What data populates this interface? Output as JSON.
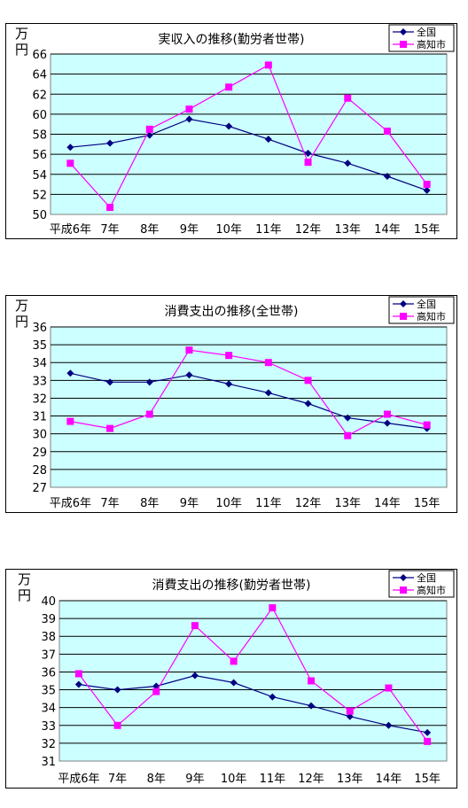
{
  "colors": {
    "plot_bg": "#CCFFFF",
    "national": "#000080",
    "kochi": "#FF00FF",
    "grid": "#000000"
  },
  "chart_data": [
    {
      "type": "line",
      "title": "実収入の推移(勤労者世帯)",
      "ylabel": "万円",
      "categories": [
        "平成6年",
        "7年",
        "8年",
        "9年",
        "10年",
        "11年",
        "12年",
        "13年",
        "14年",
        "15年"
      ],
      "ylim": [
        50,
        66
      ],
      "yticks": [
        "50",
        "52",
        "54",
        "56",
        "58",
        "60",
        "62",
        "64",
        "66"
      ],
      "grid": true,
      "legend": "top-right",
      "series": [
        {
          "name": "全国",
          "color": "#000080",
          "marker": "diamond",
          "values": [
            56.7,
            57.1,
            57.9,
            59.5,
            58.8,
            57.5,
            56.1,
            55.1,
            53.8,
            52.4
          ]
        },
        {
          "name": "高知市",
          "color": "#FF00FF",
          "marker": "square",
          "values": [
            55.1,
            50.7,
            58.5,
            60.5,
            62.7,
            64.9,
            55.2,
            61.6,
            58.3,
            53.0
          ]
        }
      ]
    },
    {
      "type": "line",
      "title": "消費支出の推移(全世帯)",
      "ylabel": "万円",
      "categories": [
        "平成6年",
        "7年",
        "8年",
        "9年",
        "10年",
        "11年",
        "12年",
        "13年",
        "14年",
        "15年"
      ],
      "ylim": [
        27,
        36
      ],
      "yticks": [
        "27",
        "28",
        "29",
        "30",
        "31",
        "32",
        "33",
        "34",
        "35",
        "36"
      ],
      "grid": true,
      "legend": "top-right",
      "series": [
        {
          "name": "全国",
          "color": "#000080",
          "marker": "diamond",
          "values": [
            33.4,
            32.9,
            32.9,
            33.3,
            32.8,
            32.3,
            31.7,
            30.9,
            30.6,
            30.3
          ]
        },
        {
          "name": "高知市",
          "color": "#FF00FF",
          "marker": "square",
          "values": [
            30.7,
            30.3,
            31.1,
            34.7,
            34.4,
            34.0,
            33.0,
            29.9,
            31.1,
            30.5
          ]
        }
      ]
    },
    {
      "type": "line",
      "title": "消費支出の推移(勤労者世帯)",
      "ylabel": "万円",
      "categories": [
        "平成6年",
        "7年",
        "8年",
        "9年",
        "10年",
        "11年",
        "12年",
        "13年",
        "14年",
        "15年"
      ],
      "ylim": [
        31,
        40
      ],
      "yticks": [
        "31",
        "32",
        "33",
        "34",
        "35",
        "36",
        "37",
        "38",
        "39",
        "40"
      ],
      "grid": true,
      "legend": "top-right",
      "series": [
        {
          "name": "全国",
          "color": "#000080",
          "marker": "diamond",
          "values": [
            35.3,
            35.0,
            35.2,
            35.8,
            35.4,
            34.6,
            34.1,
            33.5,
            33.0,
            32.6
          ]
        },
        {
          "name": "高知市",
          "color": "#FF00FF",
          "marker": "square",
          "values": [
            35.9,
            33.0,
            34.9,
            38.6,
            36.6,
            39.6,
            35.5,
            33.8,
            35.1,
            32.1
          ]
        }
      ]
    }
  ]
}
